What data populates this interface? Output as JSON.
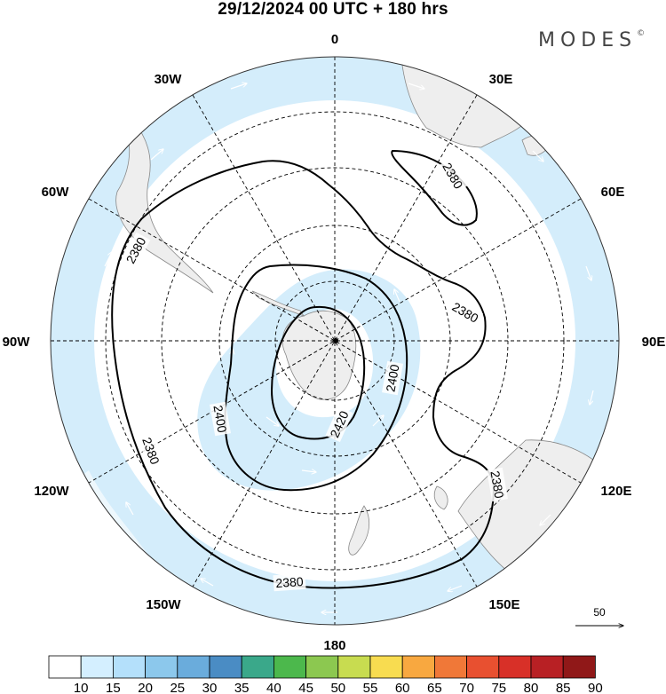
{
  "title": "29/12/2024  00 UTC  + 180 hrs",
  "brand": "MODES",
  "brand_mark": "©",
  "longitude_labels": {
    "top": "0",
    "bottom": "180",
    "lon30E": "30E",
    "lon60E": "60E",
    "lon90E": "90E",
    "lon120E": "120E",
    "lon150E": "150E",
    "lon30W": "30W",
    "lon60W": "60W",
    "lon90W": "90W",
    "lon120W": "120W",
    "lon150W": "150W"
  },
  "contours": [
    {
      "value": "2380",
      "label": "2380"
    },
    {
      "value": "2400",
      "label": "2400"
    },
    {
      "value": "2420",
      "label": "2420"
    }
  ],
  "contour_labels": {
    "c1": "2380",
    "c2": "2380",
    "c3": "2380",
    "c4": "2380",
    "c5": "2380",
    "c6": "2380",
    "c7": "2400",
    "c8": "2400",
    "c9": "2420"
  },
  "wind_scale": {
    "value": "50"
  },
  "colorbar": {
    "labels": [
      "10",
      "15",
      "20",
      "25",
      "30",
      "35",
      "40",
      "45",
      "50",
      "55",
      "60",
      "65",
      "70",
      "75",
      "80",
      "85",
      "90"
    ],
    "colors": [
      "#ffffff",
      "#d4efff",
      "#b4e0fb",
      "#8cc8ec",
      "#6aacdc",
      "#4a8cc4",
      "#3aa88a",
      "#4cb84c",
      "#8cc850",
      "#c8dc50",
      "#f8dc50",
      "#f8a840",
      "#f07838",
      "#e85030",
      "#d83028",
      "#b82024",
      "#901818"
    ]
  },
  "colors": {
    "wind_fill": "#d4edfb",
    "land": "#eeeeee",
    "coast": "#777777"
  }
}
